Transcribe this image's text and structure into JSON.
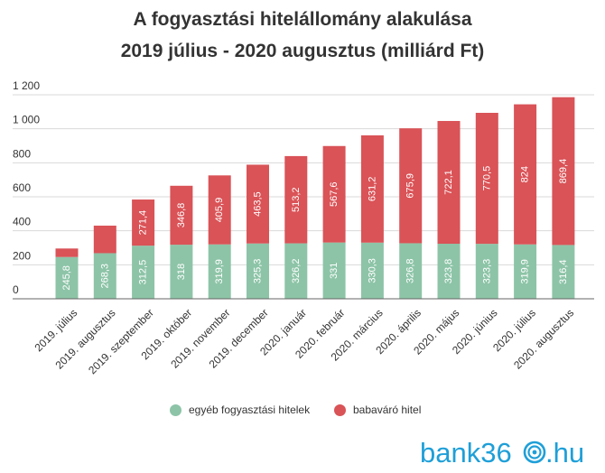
{
  "chart_data": {
    "type": "bar",
    "stacked": true,
    "title": "A fogyasztási hitelállomány alakulása",
    "subtitle": "2019 július - 2020 augusztus (milliárd Ft)",
    "categories": [
      "2019. július",
      "2019. augusztus",
      "2019. szeptember",
      "2019. október",
      "2019. november",
      "2019. december",
      "2020. január",
      "2020. február",
      "2020. március",
      "2020. április",
      "2020. május",
      "2020. június",
      "2020. július",
      "2020. augusztus"
    ],
    "series": [
      {
        "name": "egyéb fogyasztási hitelek",
        "color": "#8dc4a7",
        "values": [
          245.8,
          268.3,
          312.5,
          318,
          319.9,
          325.3,
          326.2,
          331,
          330.3,
          326.8,
          323.8,
          323.3,
          319.9,
          316.4
        ],
        "labels": [
          "245,8",
          "268,3",
          "312,5",
          "318",
          "319,9",
          "325,3",
          "326,2",
          "331",
          "330,3",
          "326,8",
          "323,8",
          "323,3",
          "319,9",
          "316,4"
        ]
      },
      {
        "name": "babaváró hitel",
        "color": "#d95357",
        "values": [
          50,
          162,
          271.4,
          346.8,
          405.9,
          463.5,
          513.2,
          567.6,
          631.2,
          675.9,
          722.1,
          770.5,
          824,
          869.4
        ],
        "labels": [
          "",
          "",
          "271,4",
          "346,8",
          "405,9",
          "463,5",
          "513,2",
          "567,6",
          "631,2",
          "675,9",
          "722,1",
          "770,5",
          "824",
          "869,4"
        ]
      }
    ],
    "yticks": [
      0,
      200,
      400,
      600,
      800,
      1000,
      1200
    ],
    "ytick_labels": [
      "0",
      "200",
      "400",
      "600",
      "800",
      "1 000",
      "1 200"
    ],
    "ylim": [
      0,
      1200
    ],
    "grid": true,
    "legend": "bottom"
  },
  "brand": {
    "prefix": "bank36",
    "suffix": ".hu",
    "color": "#1e9fd8"
  }
}
